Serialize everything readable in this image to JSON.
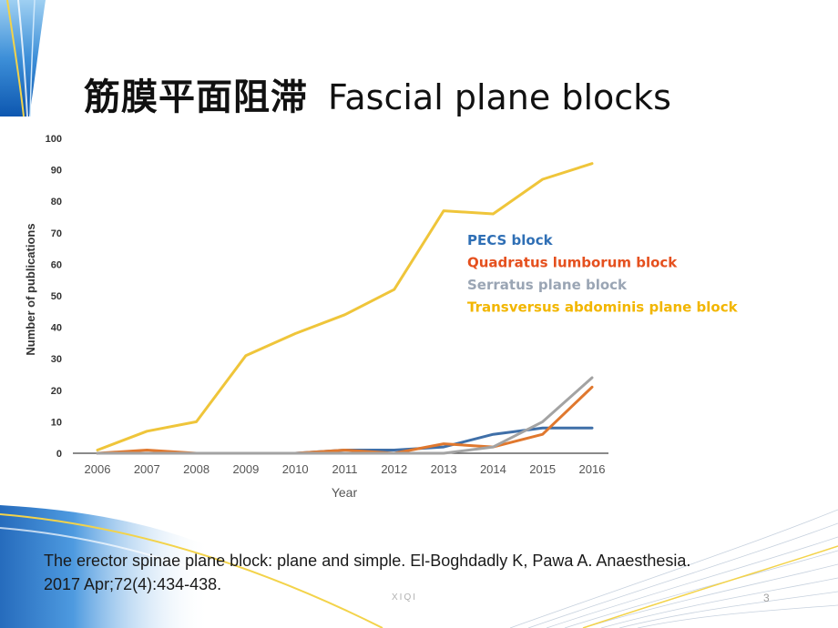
{
  "slide": {
    "title_cn": "筋膜平面阻滞",
    "title_en": "Fascial plane blocks",
    "citation_line1": "The erector spinae plane block: plane and simple. El-Boghdadly K, Pawa A. Anaesthesia.",
    "citation_line2": "2017 Apr;72(4):434-438.",
    "footer_text": "XIQI",
    "slide_number": "3"
  },
  "colors": {
    "pecs": "#3f6fa8",
    "quadratus": "#e0782e",
    "serratus": "#a3a3a3",
    "tap": "#efc53a",
    "pecs_legend": "#2f6fb5",
    "quadratus_legend": "#e5501e",
    "serratus_legend": "#9aa5b4",
    "tap_legend": "#f2b600"
  },
  "chart_data": {
    "type": "line",
    "title": "",
    "xlabel": "Year",
    "ylabel": "Number of publications",
    "x": [
      "2006",
      "2007",
      "2008",
      "2009",
      "2010",
      "2011",
      "2012",
      "2013",
      "2014",
      "2015",
      "2016"
    ],
    "ylim": [
      0,
      100
    ],
    "yticks": [
      0,
      10,
      20,
      30,
      40,
      50,
      60,
      70,
      80,
      90,
      100
    ],
    "grid": false,
    "legend_position": "right-middle",
    "series": [
      {
        "name": "PECS block",
        "key": "pecs",
        "values": [
          0,
          0,
          0,
          0,
          0,
          1,
          1,
          2,
          6,
          8,
          8
        ]
      },
      {
        "name": "Quadratus lumborum block",
        "key": "quadratus",
        "values": [
          0,
          1,
          0,
          0,
          0,
          1,
          0,
          3,
          2,
          6,
          21
        ]
      },
      {
        "name": "Serratus plane block",
        "key": "serratus",
        "values": [
          0,
          0,
          0,
          0,
          0,
          0,
          0,
          0,
          2,
          10,
          24
        ]
      },
      {
        "name": "Transversus abdominis plane block",
        "key": "tap",
        "values": [
          1,
          7,
          10,
          31,
          38,
          44,
          52,
          77,
          76,
          87,
          92
        ]
      }
    ]
  }
}
